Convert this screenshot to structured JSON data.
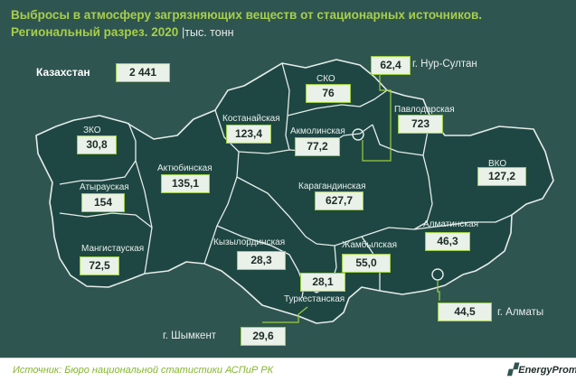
{
  "chart_data": {
    "type": "table",
    "title_line1": "Выбросы в атмосферу загрязняющих веществ от стационарных источников.",
    "title_line2": "Региональный разрез. 2020",
    "unit": "|тыс. тонн",
    "country": {
      "name": "Казахстан",
      "value": "2 441"
    },
    "regions": [
      {
        "id": "sko",
        "name": "СКО",
        "value": "76"
      },
      {
        "id": "nur-sultan",
        "name": "г. Нур-Султан",
        "value": "62,4"
      },
      {
        "id": "kostanay",
        "name": "Костанайская",
        "value": "123,4"
      },
      {
        "id": "akmola",
        "name": "Акмолинская",
        "value": "77,2"
      },
      {
        "id": "pavlodar",
        "name": "Павлодарская",
        "value": "723"
      },
      {
        "id": "zko",
        "name": "ЗКО",
        "value": "30,8"
      },
      {
        "id": "aktobe",
        "name": "Актюбинская",
        "value": "135,1"
      },
      {
        "id": "vko",
        "name": "ВКО",
        "value": "127,2"
      },
      {
        "id": "atyrau",
        "name": "Атырауская",
        "value": "154"
      },
      {
        "id": "karaganda",
        "name": "Карагандинская",
        "value": "627,7"
      },
      {
        "id": "almaty-reg",
        "name": "Алматинская",
        "value": "46,3"
      },
      {
        "id": "kyzylorda",
        "name": "Кызылординская",
        "value": "28,3"
      },
      {
        "id": "zhambyl",
        "name": "Жамбылская",
        "value": "55,0"
      },
      {
        "id": "mangistau",
        "name": "Мангистауская",
        "value": "72,5"
      },
      {
        "id": "turkestan",
        "name": "Туркестанская",
        "value": "28,1"
      },
      {
        "id": "almaty-city",
        "name": "г. Алматы",
        "value": "44,5"
      },
      {
        "id": "shymkent",
        "name": "г. Шымкент",
        "value": "29,6"
      }
    ]
  },
  "footer": {
    "source": "Источник: Бюро национальной статистики АСПиР РК",
    "logo": "EnergyProm"
  },
  "colors": {
    "background": "#2f5551",
    "map_fill": "#1e4743",
    "map_border": "#e6ecea",
    "title": "#a7cf4a",
    "box_border": "#9ccf3e",
    "source_text": "#84b52e"
  }
}
